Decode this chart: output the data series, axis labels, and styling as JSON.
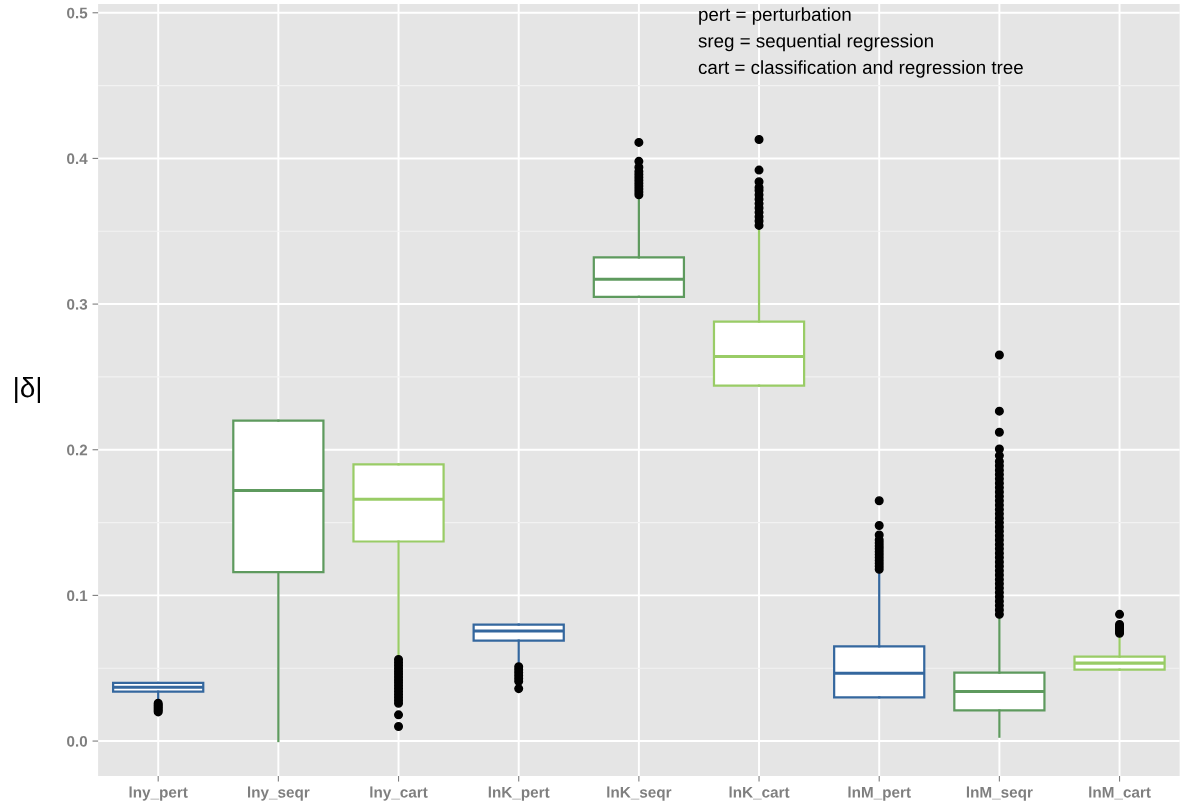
{
  "chart_data": {
    "type": "box",
    "ylabel": "|δ|",
    "categories": [
      "lny_pert",
      "lny_seqr",
      "lny_cart",
      "lnK_pert",
      "lnK_seqr",
      "lnK_cart",
      "lnM_pert",
      "lnM_seqr",
      "lnM_cart"
    ],
    "colors": [
      "#34679e",
      "#5e9a5e",
      "#99cc66",
      "#34679e",
      "#5e9a5e",
      "#99cc66",
      "#34679e",
      "#5e9a5e",
      "#99cc66"
    ],
    "boxes": [
      {
        "low": 0.027,
        "q1": 0.034,
        "median": 0.037,
        "q3": 0.04,
        "high": 0.04,
        "outliers": [
          0.026,
          0.025,
          0.024,
          0.023,
          0.022,
          0.021,
          0.02
        ]
      },
      {
        "low": 0.0,
        "q1": 0.116,
        "median": 0.172,
        "q3": 0.22,
        "high": 0.22
      },
      {
        "low": 0.057,
        "q1": 0.137,
        "median": 0.166,
        "q3": 0.19,
        "high": 0.19,
        "outliers": [
          0.056,
          0.054,
          0.052,
          0.05,
          0.048,
          0.046,
          0.044,
          0.042,
          0.04,
          0.038,
          0.036,
          0.034,
          0.032,
          0.03,
          0.028,
          0.026,
          0.018,
          0.01
        ]
      },
      {
        "low": 0.052,
        "q1": 0.069,
        "median": 0.0755,
        "q3": 0.08,
        "high": 0.08,
        "outliers": [
          0.051,
          0.049,
          0.047,
          0.045,
          0.043,
          0.041,
          0.036
        ]
      },
      {
        "low": 0.305,
        "q1": 0.305,
        "median": 0.317,
        "q3": 0.332,
        "high": 0.374,
        "outliers": [
          0.375,
          0.377,
          0.379,
          0.381,
          0.383,
          0.385,
          0.387,
          0.389,
          0.391,
          0.394,
          0.398,
          0.411
        ]
      },
      {
        "low": 0.244,
        "q1": 0.244,
        "median": 0.264,
        "q3": 0.288,
        "high": 0.353,
        "outliers": [
          0.354,
          0.357,
          0.36,
          0.363,
          0.366,
          0.369,
          0.372,
          0.375,
          0.378,
          0.38,
          0.384,
          0.392,
          0.413
        ]
      },
      {
        "low": 0.03,
        "q1": 0.03,
        "median": 0.0465,
        "q3": 0.065,
        "high": 0.117,
        "outliers": [
          0.118,
          0.12,
          0.122,
          0.124,
          0.126,
          0.128,
          0.13,
          0.132,
          0.134,
          0.136,
          0.138,
          0.1415,
          0.148,
          0.165
        ]
      },
      {
        "low": 0.003,
        "q1": 0.021,
        "median": 0.034,
        "q3": 0.047,
        "high": 0.086,
        "outliers": [
          0.087,
          0.09,
          0.093,
          0.096,
          0.099,
          0.102,
          0.105,
          0.108,
          0.111,
          0.114,
          0.117,
          0.12,
          0.123,
          0.126,
          0.129,
          0.132,
          0.135,
          0.138,
          0.141,
          0.144,
          0.147,
          0.15,
          0.153,
          0.156,
          0.159,
          0.162,
          0.165,
          0.168,
          0.171,
          0.174,
          0.177,
          0.18,
          0.183,
          0.186,
          0.189,
          0.192,
          0.196,
          0.2005,
          0.212,
          0.2265,
          0.265
        ]
      },
      {
        "low": 0.049,
        "q1": 0.049,
        "median": 0.0535,
        "q3": 0.058,
        "high": 0.073,
        "outliers": [
          0.074,
          0.075,
          0.076,
          0.077,
          0.078,
          0.079,
          0.08,
          0.087
        ]
      }
    ],
    "ylim": [
      -0.024,
      0.506
    ],
    "yticks": [
      {
        "value": 0.0,
        "label": "0.0"
      },
      0.1,
      0.2,
      0.3,
      0.4,
      0.5
    ],
    "grid": true,
    "annotations": [
      "pert = perturbation",
      "sreg = sequential regression",
      "cart = classification and regression tree"
    ]
  }
}
